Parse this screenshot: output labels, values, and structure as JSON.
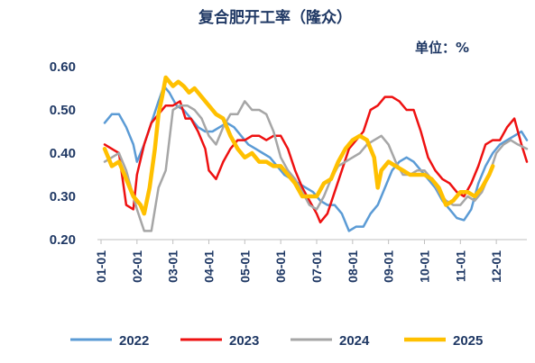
{
  "chart_data": {
    "type": "line",
    "title": "复合肥开工率（隆众）",
    "unit_label": "单位：%",
    "x_categories": [
      "01-01",
      "02-01",
      "03-01",
      "04-01",
      "05-01",
      "06-01",
      "07-01",
      "08-01",
      "09-01",
      "10-01",
      "11-01",
      "12-01"
    ],
    "ylim": [
      0.2,
      0.6
    ],
    "yticks": [
      "0.20",
      "0.30",
      "0.40",
      "0.50",
      "0.60"
    ],
    "x_domain": [
      1,
      12.85
    ],
    "legend_position": "bottom",
    "series": [
      {
        "name": "2022",
        "color": "#5b9bd5",
        "points": [
          [
            1.1,
            0.47
          ],
          [
            1.3,
            0.49
          ],
          [
            1.5,
            0.49
          ],
          [
            1.7,
            0.46
          ],
          [
            1.9,
            0.42
          ],
          [
            2.0,
            0.38
          ],
          [
            2.2,
            0.42
          ],
          [
            2.4,
            0.47
          ],
          [
            2.6,
            0.52
          ],
          [
            2.75,
            0.555
          ],
          [
            2.9,
            0.54
          ],
          [
            3.1,
            0.51
          ],
          [
            3.3,
            0.5
          ],
          [
            3.5,
            0.48
          ],
          [
            3.7,
            0.46
          ],
          [
            3.9,
            0.45
          ],
          [
            4.1,
            0.45
          ],
          [
            4.3,
            0.46
          ],
          [
            4.5,
            0.47
          ],
          [
            4.7,
            0.46
          ],
          [
            4.9,
            0.44
          ],
          [
            5.1,
            0.42
          ],
          [
            5.3,
            0.41
          ],
          [
            5.5,
            0.4
          ],
          [
            5.7,
            0.39
          ],
          [
            5.9,
            0.37
          ],
          [
            6.1,
            0.35
          ],
          [
            6.3,
            0.34
          ],
          [
            6.5,
            0.33
          ],
          [
            6.7,
            0.32
          ],
          [
            6.9,
            0.31
          ],
          [
            7.1,
            0.29
          ],
          [
            7.3,
            0.28
          ],
          [
            7.5,
            0.28
          ],
          [
            7.7,
            0.26
          ],
          [
            7.9,
            0.22
          ],
          [
            8.1,
            0.23
          ],
          [
            8.3,
            0.23
          ],
          [
            8.5,
            0.26
          ],
          [
            8.7,
            0.28
          ],
          [
            8.9,
            0.32
          ],
          [
            9.1,
            0.36
          ],
          [
            9.3,
            0.38
          ],
          [
            9.5,
            0.39
          ],
          [
            9.7,
            0.38
          ],
          [
            9.9,
            0.36
          ],
          [
            10.1,
            0.34
          ],
          [
            10.3,
            0.32
          ],
          [
            10.5,
            0.29
          ],
          [
            10.7,
            0.27
          ],
          [
            10.9,
            0.25
          ],
          [
            11.1,
            0.245
          ],
          [
            11.3,
            0.27
          ],
          [
            11.5,
            0.33
          ],
          [
            11.7,
            0.37
          ],
          [
            11.9,
            0.4
          ],
          [
            12.1,
            0.42
          ],
          [
            12.3,
            0.43
          ],
          [
            12.5,
            0.44
          ],
          [
            12.7,
            0.45
          ],
          [
            12.85,
            0.43
          ]
        ]
      },
      {
        "name": "2023",
        "color": "#ee1111",
        "points": [
          [
            1.1,
            0.42
          ],
          [
            1.3,
            0.41
          ],
          [
            1.5,
            0.4
          ],
          [
            1.7,
            0.28
          ],
          [
            1.9,
            0.27
          ],
          [
            2.0,
            0.35
          ],
          [
            2.2,
            0.42
          ],
          [
            2.4,
            0.47
          ],
          [
            2.6,
            0.49
          ],
          [
            2.8,
            0.51
          ],
          [
            3.0,
            0.51
          ],
          [
            3.2,
            0.52
          ],
          [
            3.35,
            0.48
          ],
          [
            3.5,
            0.48
          ],
          [
            3.7,
            0.45
          ],
          [
            3.9,
            0.41
          ],
          [
            4.0,
            0.36
          ],
          [
            4.2,
            0.34
          ],
          [
            4.4,
            0.38
          ],
          [
            4.6,
            0.41
          ],
          [
            4.8,
            0.43
          ],
          [
            5.0,
            0.43
          ],
          [
            5.2,
            0.44
          ],
          [
            5.4,
            0.44
          ],
          [
            5.6,
            0.43
          ],
          [
            5.8,
            0.44
          ],
          [
            6.0,
            0.44
          ],
          [
            6.2,
            0.41
          ],
          [
            6.4,
            0.36
          ],
          [
            6.6,
            0.32
          ],
          [
            6.8,
            0.29
          ],
          [
            7.0,
            0.26
          ],
          [
            7.1,
            0.24
          ],
          [
            7.3,
            0.26
          ],
          [
            7.5,
            0.31
          ],
          [
            7.7,
            0.36
          ],
          [
            7.9,
            0.41
          ],
          [
            8.1,
            0.43
          ],
          [
            8.3,
            0.45
          ],
          [
            8.5,
            0.5
          ],
          [
            8.7,
            0.51
          ],
          [
            8.9,
            0.53
          ],
          [
            9.1,
            0.53
          ],
          [
            9.3,
            0.52
          ],
          [
            9.5,
            0.5
          ],
          [
            9.7,
            0.5
          ],
          [
            9.9,
            0.45
          ],
          [
            10.1,
            0.39
          ],
          [
            10.3,
            0.36
          ],
          [
            10.5,
            0.34
          ],
          [
            10.7,
            0.33
          ],
          [
            10.9,
            0.31
          ],
          [
            11.1,
            0.3
          ],
          [
            11.3,
            0.33
          ],
          [
            11.5,
            0.37
          ],
          [
            11.7,
            0.42
          ],
          [
            11.9,
            0.43
          ],
          [
            12.1,
            0.43
          ],
          [
            12.3,
            0.46
          ],
          [
            12.5,
            0.48
          ],
          [
            12.7,
            0.42
          ],
          [
            12.85,
            0.38
          ]
        ]
      },
      {
        "name": "2024",
        "color": "#a6a6a6",
        "points": [
          [
            1.1,
            0.38
          ],
          [
            1.3,
            0.39
          ],
          [
            1.5,
            0.4
          ],
          [
            1.7,
            0.36
          ],
          [
            1.9,
            0.3
          ],
          [
            2.0,
            0.27
          ],
          [
            2.2,
            0.22
          ],
          [
            2.4,
            0.22
          ],
          [
            2.6,
            0.32
          ],
          [
            2.8,
            0.36
          ],
          [
            3.0,
            0.5
          ],
          [
            3.2,
            0.51
          ],
          [
            3.4,
            0.51
          ],
          [
            3.6,
            0.5
          ],
          [
            3.8,
            0.48
          ],
          [
            4.0,
            0.44
          ],
          [
            4.2,
            0.42
          ],
          [
            4.4,
            0.46
          ],
          [
            4.6,
            0.49
          ],
          [
            4.8,
            0.49
          ],
          [
            5.0,
            0.52
          ],
          [
            5.2,
            0.5
          ],
          [
            5.4,
            0.5
          ],
          [
            5.6,
            0.49
          ],
          [
            5.8,
            0.45
          ],
          [
            6.0,
            0.39
          ],
          [
            6.2,
            0.36
          ],
          [
            6.4,
            0.34
          ],
          [
            6.6,
            0.31
          ],
          [
            6.8,
            0.28
          ],
          [
            7.0,
            0.27
          ],
          [
            7.2,
            0.3
          ],
          [
            7.4,
            0.34
          ],
          [
            7.6,
            0.37
          ],
          [
            7.8,
            0.38
          ],
          [
            8.0,
            0.39
          ],
          [
            8.2,
            0.4
          ],
          [
            8.4,
            0.42
          ],
          [
            8.6,
            0.43
          ],
          [
            8.8,
            0.44
          ],
          [
            9.0,
            0.42
          ],
          [
            9.2,
            0.38
          ],
          [
            9.4,
            0.35
          ],
          [
            9.6,
            0.35
          ],
          [
            9.8,
            0.36
          ],
          [
            10.0,
            0.36
          ],
          [
            10.2,
            0.34
          ],
          [
            10.4,
            0.31
          ],
          [
            10.6,
            0.29
          ],
          [
            10.8,
            0.28
          ],
          [
            11.0,
            0.28
          ],
          [
            11.2,
            0.3
          ],
          [
            11.4,
            0.29
          ],
          [
            11.6,
            0.31
          ],
          [
            11.8,
            0.35
          ],
          [
            12.0,
            0.4
          ],
          [
            12.2,
            0.42
          ],
          [
            12.4,
            0.43
          ],
          [
            12.6,
            0.42
          ],
          [
            12.85,
            0.41
          ]
        ]
      },
      {
        "name": "2025",
        "color": "#ffc000",
        "points": [
          [
            1.1,
            0.41
          ],
          [
            1.3,
            0.37
          ],
          [
            1.5,
            0.38
          ],
          [
            1.7,
            0.34
          ],
          [
            1.9,
            0.3
          ],
          [
            2.1,
            0.28
          ],
          [
            2.2,
            0.26
          ],
          [
            2.35,
            0.32
          ],
          [
            2.5,
            0.41
          ],
          [
            2.6,
            0.49
          ],
          [
            2.7,
            0.53
          ],
          [
            2.8,
            0.575
          ],
          [
            3.0,
            0.555
          ],
          [
            3.15,
            0.565
          ],
          [
            3.3,
            0.555
          ],
          [
            3.45,
            0.54
          ],
          [
            3.6,
            0.55
          ],
          [
            3.8,
            0.53
          ],
          [
            4.0,
            0.51
          ],
          [
            4.2,
            0.49
          ],
          [
            4.4,
            0.48
          ],
          [
            4.6,
            0.44
          ],
          [
            4.8,
            0.41
          ],
          [
            5.0,
            0.39
          ],
          [
            5.2,
            0.4
          ],
          [
            5.4,
            0.38
          ],
          [
            5.6,
            0.38
          ],
          [
            5.8,
            0.37
          ],
          [
            6.0,
            0.37
          ],
          [
            6.2,
            0.35
          ],
          [
            6.4,
            0.33
          ],
          [
            6.6,
            0.3
          ],
          [
            6.8,
            0.3
          ],
          [
            7.0,
            0.3
          ],
          [
            7.2,
            0.33
          ],
          [
            7.4,
            0.34
          ],
          [
            7.6,
            0.38
          ],
          [
            7.8,
            0.41
          ],
          [
            8.0,
            0.43
          ],
          [
            8.2,
            0.44
          ],
          [
            8.4,
            0.43
          ],
          [
            8.6,
            0.39
          ],
          [
            8.7,
            0.32
          ],
          [
            8.8,
            0.36
          ],
          [
            9.0,
            0.38
          ],
          [
            9.2,
            0.37
          ],
          [
            9.4,
            0.36
          ],
          [
            9.6,
            0.35
          ],
          [
            9.8,
            0.35
          ],
          [
            10.0,
            0.35
          ],
          [
            10.2,
            0.34
          ],
          [
            10.4,
            0.32
          ],
          [
            10.6,
            0.28
          ],
          [
            10.8,
            0.29
          ],
          [
            11.0,
            0.31
          ],
          [
            11.2,
            0.31
          ],
          [
            11.4,
            0.3
          ],
          [
            11.6,
            0.32
          ],
          [
            11.8,
            0.35
          ],
          [
            11.9,
            0.37
          ]
        ]
      }
    ]
  }
}
